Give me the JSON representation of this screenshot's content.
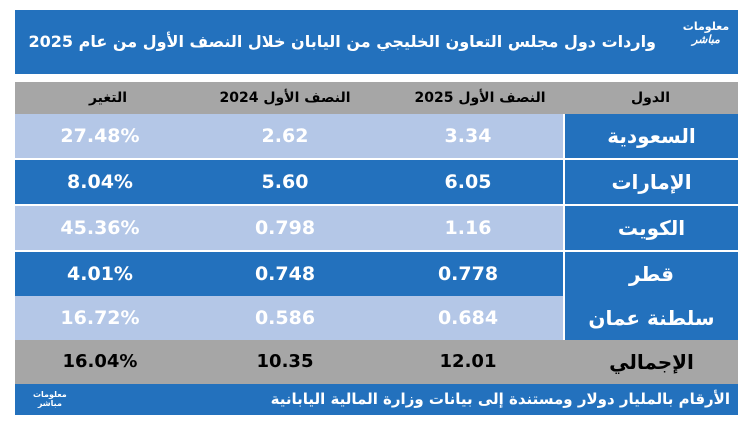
{
  "header": {
    "title": "واردات دول مجلس التعاون الخليجي من اليابان خلال النصف الأول من عام 2025",
    "logo_line1": "معلومات",
    "logo_line2": "مباشر"
  },
  "chart_data": {
    "type": "table",
    "columns": [
      "الدول",
      "النصف الأول 2025",
      "النصف الأول 2024",
      "التغير"
    ],
    "rows": [
      {
        "country": "السعودية",
        "h1_2025": "3.34",
        "h1_2024": "2.62",
        "change": "27.48%"
      },
      {
        "country": "الإمارات",
        "h1_2025": "6.05",
        "h1_2024": "5.60",
        "change": "8.04%"
      },
      {
        "country": "الكويت",
        "h1_2025": "1.16",
        "h1_2024": "0.798",
        "change": "45.36%"
      },
      {
        "country": "قطر",
        "h1_2025": "0.778",
        "h1_2024": "0.748",
        "change": "4.01%"
      },
      {
        "country": "سلطنة عمان",
        "h1_2025": "0.684",
        "h1_2024": "0.586",
        "change": "16.72%"
      }
    ],
    "total": {
      "country": "الإجمالي",
      "h1_2025": "12.01",
      "h1_2024": "10.35",
      "change": "16.04%"
    }
  },
  "footer": {
    "note": "الأرقام بالمليار دولار ومستندة إلى بيانات وزارة المالية اليابانية",
    "mini_logo_line1": "معلومات",
    "mini_logo_line2": "مباشر"
  },
  "colors": {
    "brand_blue": "#2371bd",
    "light_band": "#b4c7e7",
    "gray_band": "#a6a6a6"
  }
}
